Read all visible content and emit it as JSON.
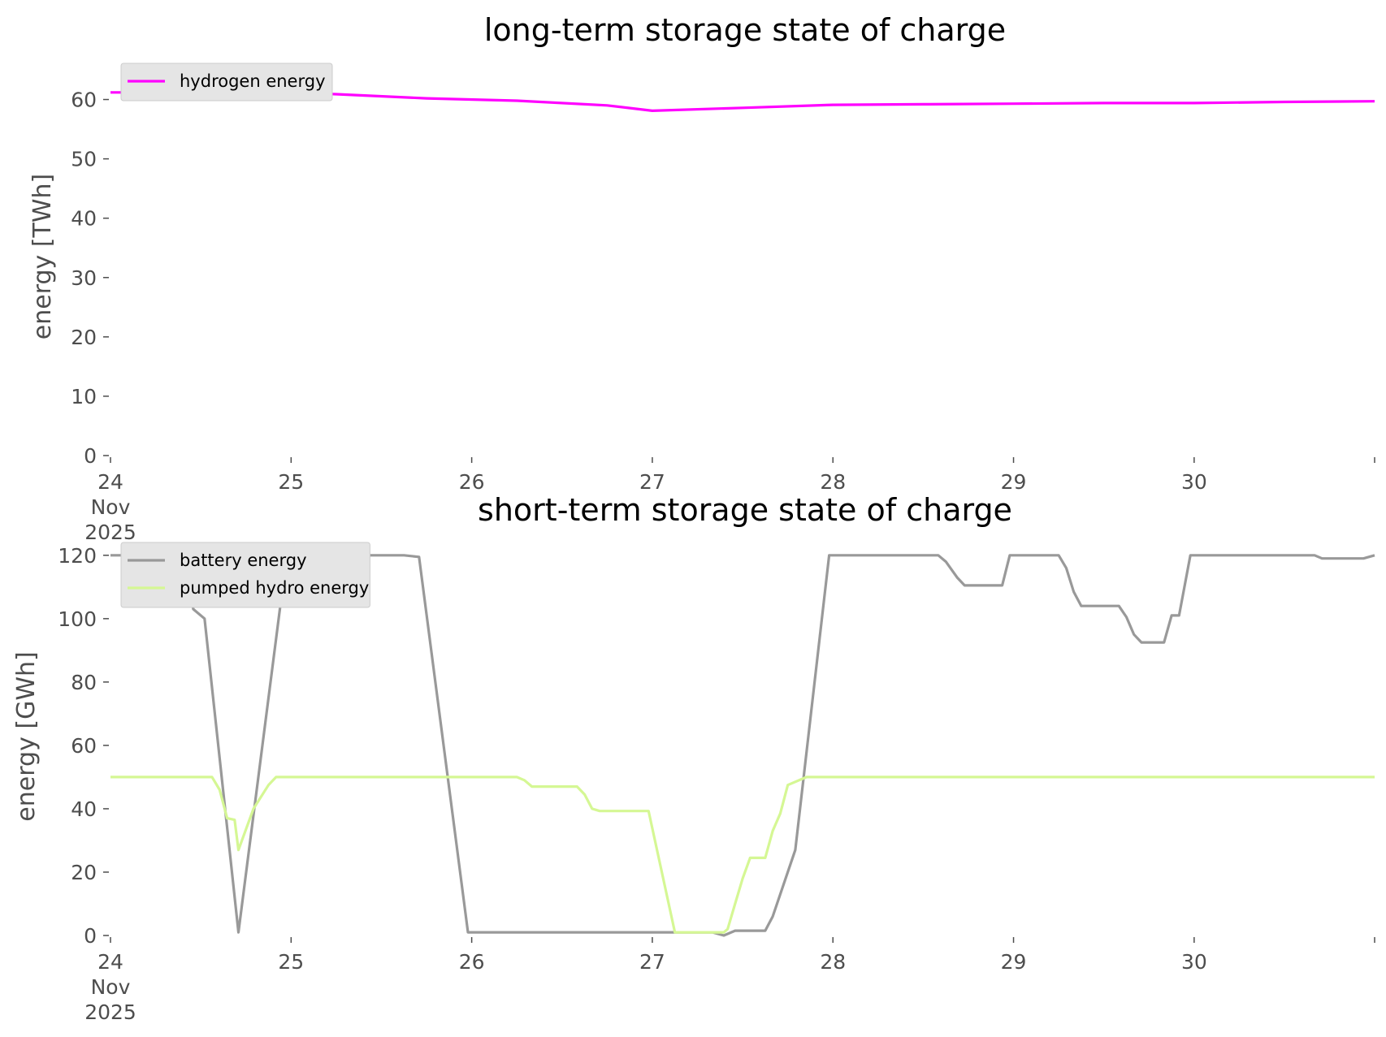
{
  "chart_data": [
    {
      "type": "line",
      "title": "long-term storage state of charge",
      "xlabel": "",
      "ylabel": "energy [TWh]",
      "x_range": [
        "2025-11-24 00:00",
        "2025-11-30 23:59"
      ],
      "ylim": [
        0,
        65
      ],
      "y_ticks": [
        "0",
        "10",
        "20",
        "30",
        "40",
        "50",
        "60"
      ],
      "x_ticks": [
        {
          "date": "2025-11-24",
          "lines": [
            "24",
            "Nov",
            "2025"
          ]
        },
        {
          "date": "2025-11-25",
          "lines": [
            "25"
          ]
        },
        {
          "date": "2025-11-26",
          "lines": [
            "26"
          ]
        },
        {
          "date": "2025-11-27",
          "lines": [
            "27"
          ]
        },
        {
          "date": "2025-11-28",
          "lines": [
            "28"
          ]
        },
        {
          "date": "2025-11-29",
          "lines": [
            "29"
          ]
        },
        {
          "date": "2025-11-30",
          "lines": [
            "30"
          ]
        }
      ],
      "grid": false,
      "legend": "top-left",
      "series": [
        {
          "name": "hydrogen energy",
          "color": "#ff00ff",
          "points": [
            [
              "2025-11-24 00:00",
              61.2
            ],
            [
              "2025-11-25 00:00",
              61.2
            ],
            [
              "2025-11-25 06:00",
              60.9
            ],
            [
              "2025-11-25 18:00",
              60.2
            ],
            [
              "2025-11-26 06:00",
              59.8
            ],
            [
              "2025-11-26 18:00",
              59.0
            ],
            [
              "2025-11-27 00:00",
              58.1
            ],
            [
              "2025-11-27 12:00",
              58.6
            ],
            [
              "2025-11-28 00:00",
              59.1
            ],
            [
              "2025-11-28 12:00",
              59.2
            ],
            [
              "2025-11-29 00:00",
              59.3
            ],
            [
              "2025-11-29 12:00",
              59.4
            ],
            [
              "2025-11-30 00:00",
              59.4
            ],
            [
              "2025-11-30 12:00",
              59.6
            ],
            [
              "2025-11-30 23:59",
              59.7
            ]
          ]
        }
      ]
    },
    {
      "type": "line",
      "title": "short-term storage state of charge",
      "xlabel": "",
      "ylabel": "energy [GWh]",
      "x_range": [
        "2025-11-24 00:00",
        "2025-11-30 23:59"
      ],
      "ylim": [
        0,
        122
      ],
      "y_ticks": [
        "0",
        "20",
        "40",
        "60",
        "80",
        "100",
        "120"
      ],
      "x_ticks": [
        {
          "date": "2025-11-24",
          "lines": [
            "24",
            "Nov",
            "2025"
          ]
        },
        {
          "date": "2025-11-25",
          "lines": [
            "25"
          ]
        },
        {
          "date": "2025-11-26",
          "lines": [
            "26"
          ]
        },
        {
          "date": "2025-11-27",
          "lines": [
            "27"
          ]
        },
        {
          "date": "2025-11-28",
          "lines": [
            "28"
          ]
        },
        {
          "date": "2025-11-29",
          "lines": [
            "29"
          ]
        },
        {
          "date": "2025-11-30",
          "lines": [
            "30"
          ]
        }
      ],
      "grid": false,
      "legend": "top-left",
      "series": [
        {
          "name": "battery energy",
          "color": "#999999",
          "points": [
            [
              "2025-11-24 00:00",
              120
            ],
            [
              "2025-11-24 06:00",
              120
            ],
            [
              "2025-11-24 07:00",
              116
            ],
            [
              "2025-11-24 10:00",
              116
            ],
            [
              "2025-11-24 11:00",
              103
            ],
            [
              "2025-11-24 12:30",
              100
            ],
            [
              "2025-11-24 17:00",
              1
            ],
            [
              "2025-11-24 23:00",
              112
            ],
            [
              "2025-11-25 06:00",
              112
            ],
            [
              "2025-11-25 07:30",
              120
            ],
            [
              "2025-11-25 15:00",
              120
            ],
            [
              "2025-11-25 17:00",
              119.5
            ],
            [
              "2025-11-25 23:30",
              1
            ],
            [
              "2025-11-27 08:00",
              1
            ],
            [
              "2025-11-27 09:30",
              0
            ],
            [
              "2025-11-27 11:00",
              1.5
            ],
            [
              "2025-11-27 15:00",
              1.5
            ],
            [
              "2025-11-27 16:00",
              6
            ],
            [
              "2025-11-27 19:00",
              27
            ],
            [
              "2025-11-27 23:30",
              120
            ],
            [
              "2025-11-28 14:00",
              120
            ],
            [
              "2025-11-28 15:00",
              118
            ],
            [
              "2025-11-28 16:30",
              113
            ],
            [
              "2025-11-28 17:30",
              110.5
            ],
            [
              "2025-11-28 22:30",
              110.5
            ],
            [
              "2025-11-28 23:30",
              120
            ],
            [
              "2025-11-29 06:00",
              120
            ],
            [
              "2025-11-29 07:00",
              116
            ],
            [
              "2025-11-29 08:00",
              108.5
            ],
            [
              "2025-11-29 09:00",
              104
            ],
            [
              "2025-11-29 14:00",
              104
            ],
            [
              "2025-11-29 15:00",
              100.5
            ],
            [
              "2025-11-29 16:00",
              95
            ],
            [
              "2025-11-29 17:00",
              92.5
            ],
            [
              "2025-11-29 20:00",
              92.5
            ],
            [
              "2025-11-29 21:00",
              101
            ],
            [
              "2025-11-29 22:00",
              101
            ],
            [
              "2025-11-29 23:30",
              120
            ],
            [
              "2025-11-30 16:00",
              120
            ],
            [
              "2025-11-30 17:00",
              119
            ],
            [
              "2025-11-30 22:30",
              119
            ],
            [
              "2025-11-30 23:59",
              120
            ]
          ]
        },
        {
          "name": "pumped hydro energy",
          "color": "#d5f794",
          "points": [
            [
              "2025-11-24 00:00",
              50
            ],
            [
              "2025-11-24 13:30",
              50
            ],
            [
              "2025-11-24 14:30",
              46
            ],
            [
              "2025-11-24 15:30",
              37
            ],
            [
              "2025-11-24 16:30",
              36.5
            ],
            [
              "2025-11-24 17:00",
              27
            ],
            [
              "2025-11-24 19:00",
              40
            ],
            [
              "2025-11-24 21:00",
              47.5
            ],
            [
              "2025-11-24 22:00",
              50
            ],
            [
              "2025-11-26 06:00",
              50
            ],
            [
              "2025-11-26 07:00",
              49
            ],
            [
              "2025-11-26 08:00",
              47
            ],
            [
              "2025-11-26 14:00",
              47
            ],
            [
              "2025-11-26 15:00",
              44.5
            ],
            [
              "2025-11-26 16:00",
              40
            ],
            [
              "2025-11-26 17:00",
              39.3
            ],
            [
              "2025-11-26 23:30",
              39.3
            ],
            [
              "2025-11-27 03:00",
              1
            ],
            [
              "2025-11-27 09:30",
              1
            ],
            [
              "2025-11-27 10:00",
              2
            ],
            [
              "2025-11-27 11:00",
              10
            ],
            [
              "2025-11-27 12:00",
              18
            ],
            [
              "2025-11-27 13:00",
              24.5
            ],
            [
              "2025-11-27 15:00",
              24.5
            ],
            [
              "2025-11-27 16:00",
              33
            ],
            [
              "2025-11-27 17:00",
              38.5
            ],
            [
              "2025-11-27 18:00",
              47.5
            ],
            [
              "2025-11-27 20:30",
              50
            ],
            [
              "2025-11-30 23:59",
              50
            ]
          ]
        }
      ]
    }
  ]
}
